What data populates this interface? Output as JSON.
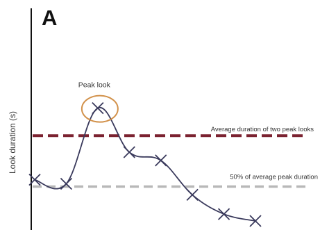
{
  "chart_data": {
    "type": "line",
    "panel_label": "A",
    "title": "",
    "xlabel": "",
    "ylabel": "Look duration (s)",
    "grid": false,
    "legend": "none",
    "xlim": [
      0,
      8
    ],
    "ylim": [
      0,
      10
    ],
    "series": [
      {
        "x": [
          0,
          1,
          2,
          3,
          4,
          5,
          6,
          7
        ],
        "values": [
          3.0,
          2.7,
          8.2,
          5.0,
          4.4,
          1.9,
          0.5,
          0
        ],
        "color": "#3a3a5c",
        "marker": "x"
      }
    ],
    "reference_lines": [
      {
        "label": "Average duration of two peak looks",
        "y": 6.2,
        "color": "#7b2230",
        "style": "dashed"
      },
      {
        "label": "50% of average peak duration",
        "y": 2.5,
        "color": "#b8b8b8",
        "style": "dashed"
      }
    ],
    "annotations": [
      {
        "text": "Peak look",
        "point_index": 2,
        "circle_color": "#d2914a"
      }
    ]
  }
}
